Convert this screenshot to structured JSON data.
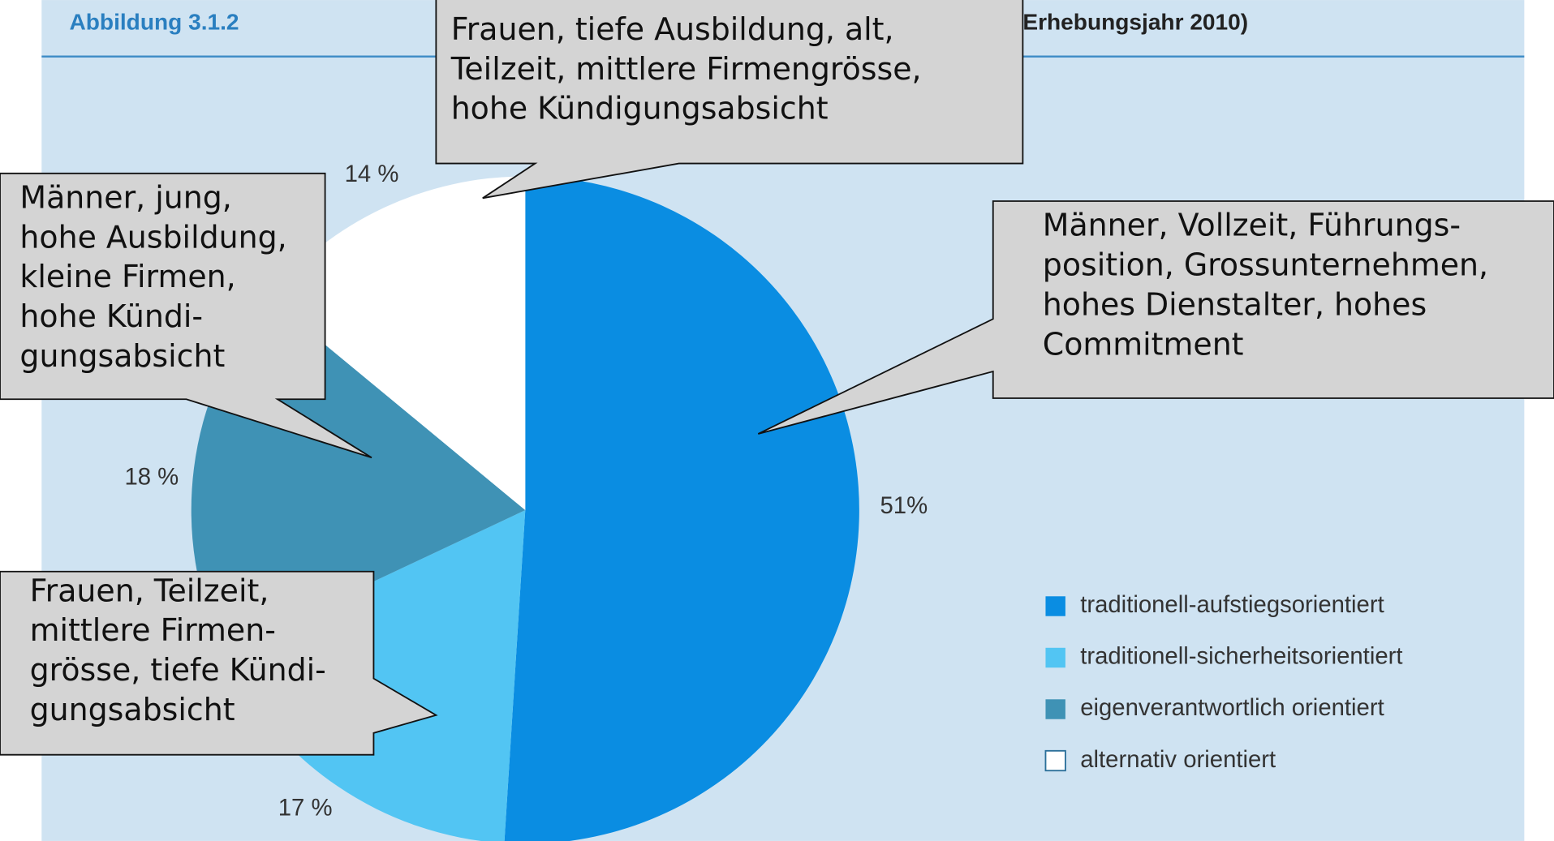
{
  "chart_data": {
    "type": "pie",
    "title": "Abbildung 3.1.2",
    "subtitle": "Erhebungsjahr 2010)",
    "categories": [
      "traditionell-aufstiegsorientiert",
      "traditionell-sicherheitsorientiert",
      "eigenverantwortlich orientiert",
      "alternativ orientiert"
    ],
    "values": [
      51,
      17,
      18,
      14
    ],
    "value_labels": [
      "51%",
      "17 %",
      "18 %",
      "14 %"
    ],
    "colors": [
      "#0a8de2",
      "#52c5f3",
      "#3f92b5",
      "#ffffff"
    ],
    "annotations": [
      {
        "lines": [
          "Frauen, tiefe Ausbildung, alt,",
          "Teilzeit, mittlere Firmengrösse,",
          "hohe Kündigungsabsicht"
        ]
      },
      {
        "lines": [
          "Männer, jung,",
          "hohe Ausbildung,",
          "kleine Firmen,",
          "hohe Kündi-",
          "gungsabsicht"
        ]
      },
      {
        "lines": [
          "Männer, Vollzeit, Führungs-",
          "position, Grossunternehmen,",
          "hohes Dienstalter, hohes",
          "Commitment"
        ]
      },
      {
        "lines": [
          "Frauen, Teilzeit,",
          "mittlere Firmen-",
          "grösse, tiefe Kündi-",
          "gungsabsicht"
        ]
      }
    ]
  }
}
